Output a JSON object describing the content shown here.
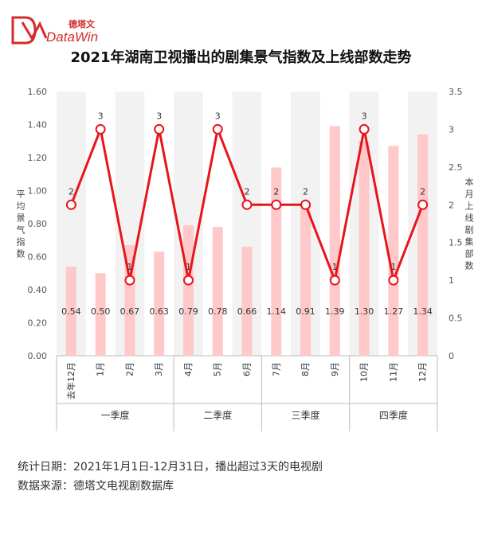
{
  "brand": {
    "cn": "德塔文",
    "en": "DataWin"
  },
  "title": "2021年湖南卫视播出的剧集景气指数及上线部数走势",
  "notes": {
    "line1": "统计日期：2021年1月1日-12月31日，播出超过3天的电视剧",
    "line2": "数据来源：德塔文电视剧数据库"
  },
  "colors": {
    "bar": "#ffc9c9",
    "line": "#e8141c",
    "plot_bg": "#f2f2f2"
  },
  "chart_data": {
    "type": "bar+line",
    "categories": [
      "去年12月",
      "1月",
      "2月",
      "3月",
      "4月",
      "5月",
      "6月",
      "7月",
      "8月",
      "9月",
      "10月",
      "11月",
      "12月"
    ],
    "groups": [
      {
        "label": "一季度",
        "span": [
          0,
          3
        ]
      },
      {
        "label": "二季度",
        "span": [
          4,
          6
        ]
      },
      {
        "label": "三季度",
        "span": [
          7,
          9
        ]
      },
      {
        "label": "四季度",
        "span": [
          10,
          12
        ]
      }
    ],
    "series": [
      {
        "kind": "bar",
        "axis": "left",
        "values": [
          0.54,
          0.5,
          0.67,
          0.63,
          0.79,
          0.78,
          0.66,
          1.14,
          0.91,
          1.39,
          1.3,
          1.27,
          1.34
        ],
        "labels": [
          "0.54",
          "0.50",
          "0.67",
          "0.63",
          "0.79",
          "0.78",
          "0.66",
          "1.14",
          "0.91",
          "1.39",
          "1.30",
          "1.27",
          "1.34"
        ]
      },
      {
        "kind": "line",
        "axis": "right",
        "values": [
          2,
          3,
          1,
          3,
          1,
          3,
          2,
          2,
          2,
          1,
          3,
          1,
          2
        ],
        "labels": [
          "2",
          "3",
          "1",
          "3",
          "1",
          "3",
          "2",
          "2",
          "2",
          "1",
          "3",
          "1",
          "2"
        ]
      }
    ],
    "y_left": {
      "label": "平均景气指数",
      "ylim": [
        0,
        1.6
      ],
      "ticks": [
        "0.00",
        "0.20",
        "0.40",
        "0.60",
        "0.80",
        "1.00",
        "1.20",
        "1.40",
        "1.60"
      ]
    },
    "y_right": {
      "label": "本月上线剧集部数",
      "ylim": [
        0,
        3.5
      ],
      "ticks": [
        "0",
        "0.5",
        "1",
        "1.5",
        "2",
        "2.5",
        "3",
        "3.5"
      ]
    },
    "grid": "vertical-bands"
  }
}
